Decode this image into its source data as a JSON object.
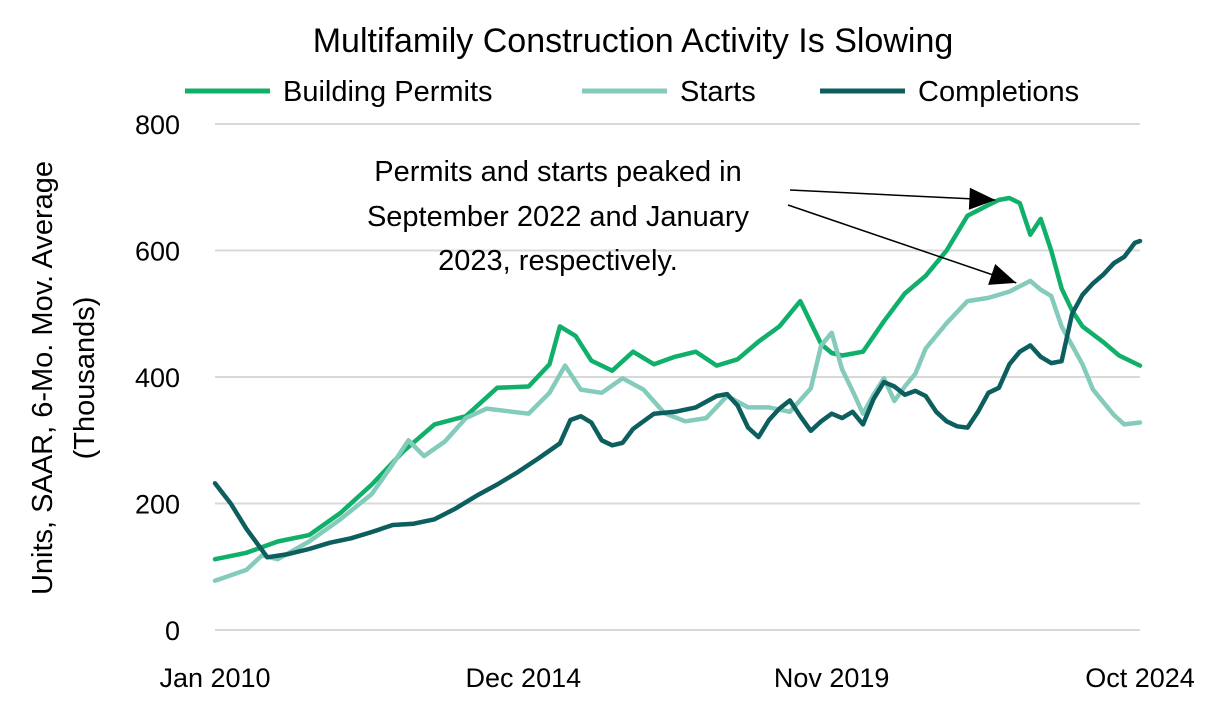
{
  "chart_data": {
    "type": "line",
    "title": "Multifamily Construction Activity Is Slowing",
    "xlabel": "",
    "ylabel_line1": "Units, SAAR, 6-Mo. Mov. Average",
    "ylabel_line2": "(Thousands)",
    "ylim": [
      0,
      800
    ],
    "yticks": [
      0,
      200,
      400,
      600,
      800
    ],
    "ytick_labels": [
      "0",
      "200",
      "400",
      "600",
      "800"
    ],
    "xlim": [
      0,
      177
    ],
    "xticks": [
      0,
      59,
      118,
      177
    ],
    "xtick_labels": [
      "Jan 2010",
      "Dec 2014",
      "Nov 2019",
      "Oct 2024"
    ],
    "grid": true,
    "legend_position": "top",
    "annotation": {
      "lines": [
        "Permits and starts peaked in",
        "September 2022 and January",
        "2023, respectively."
      ],
      "targets": [
        {
          "series": "Building Permits",
          "x": 152,
          "y": 683
        },
        {
          "series": "Starts",
          "x": 156,
          "y": 552
        }
      ]
    },
    "series": [
      {
        "name": "Building Permits",
        "color": "#10b06a",
        "points": [
          [
            0,
            112
          ],
          [
            6,
            122
          ],
          [
            12,
            140
          ],
          [
            18,
            150
          ],
          [
            24,
            185
          ],
          [
            30,
            230
          ],
          [
            36,
            282
          ],
          [
            42,
            325
          ],
          [
            48,
            338
          ],
          [
            54,
            383
          ],
          [
            60,
            385
          ],
          [
            64,
            420
          ],
          [
            66,
            480
          ],
          [
            69,
            465
          ],
          [
            72,
            426
          ],
          [
            76,
            410
          ],
          [
            80,
            440
          ],
          [
            84,
            420
          ],
          [
            88,
            432
          ],
          [
            92,
            440
          ],
          [
            96,
            418
          ],
          [
            100,
            428
          ],
          [
            104,
            456
          ],
          [
            108,
            480
          ],
          [
            112,
            520
          ],
          [
            116,
            452
          ],
          [
            118,
            438
          ],
          [
            120,
            434
          ],
          [
            124,
            440
          ],
          [
            128,
            488
          ],
          [
            132,
            532
          ],
          [
            136,
            560
          ],
          [
            140,
            600
          ],
          [
            144,
            655
          ],
          [
            148,
            672
          ],
          [
            150,
            680
          ],
          [
            152,
            683
          ],
          [
            154,
            675
          ],
          [
            156,
            625
          ],
          [
            158,
            650
          ],
          [
            160,
            600
          ],
          [
            162,
            540
          ],
          [
            164,
            505
          ],
          [
            166,
            480
          ],
          [
            170,
            455
          ],
          [
            173,
            434
          ],
          [
            177,
            418
          ]
        ]
      },
      {
        "name": "Starts",
        "color": "#84cbbb",
        "points": [
          [
            0,
            78
          ],
          [
            6,
            95
          ],
          [
            9,
            118
          ],
          [
            12,
            112
          ],
          [
            18,
            140
          ],
          [
            24,
            175
          ],
          [
            30,
            215
          ],
          [
            34,
            262
          ],
          [
            37,
            300
          ],
          [
            40,
            275
          ],
          [
            44,
            298
          ],
          [
            48,
            335
          ],
          [
            52,
            350
          ],
          [
            56,
            346
          ],
          [
            60,
            342
          ],
          [
            64,
            375
          ],
          [
            67,
            418
          ],
          [
            70,
            380
          ],
          [
            74,
            375
          ],
          [
            78,
            398
          ],
          [
            82,
            380
          ],
          [
            86,
            343
          ],
          [
            90,
            330
          ],
          [
            94,
            335
          ],
          [
            98,
            370
          ],
          [
            102,
            352
          ],
          [
            106,
            352
          ],
          [
            110,
            345
          ],
          [
            114,
            382
          ],
          [
            116,
            450
          ],
          [
            118,
            470
          ],
          [
            120,
            412
          ],
          [
            122,
            378
          ],
          [
            124,
            342
          ],
          [
            126,
            372
          ],
          [
            128,
            398
          ],
          [
            130,
            362
          ],
          [
            132,
            385
          ],
          [
            134,
            405
          ],
          [
            136,
            445
          ],
          [
            140,
            485
          ],
          [
            144,
            520
          ],
          [
            148,
            525
          ],
          [
            152,
            535
          ],
          [
            156,
            552
          ],
          [
            158,
            538
          ],
          [
            160,
            528
          ],
          [
            162,
            480
          ],
          [
            164,
            450
          ],
          [
            166,
            420
          ],
          [
            168,
            380
          ],
          [
            170,
            360
          ],
          [
            172,
            340
          ],
          [
            174,
            325
          ],
          [
            177,
            328
          ]
        ]
      },
      {
        "name": "Completions",
        "color": "#0d5e5e",
        "points": [
          [
            0,
            232
          ],
          [
            3,
            200
          ],
          [
            6,
            160
          ],
          [
            10,
            115
          ],
          [
            14,
            120
          ],
          [
            18,
            128
          ],
          [
            22,
            138
          ],
          [
            26,
            145
          ],
          [
            30,
            155
          ],
          [
            34,
            166
          ],
          [
            38,
            168
          ],
          [
            42,
            175
          ],
          [
            46,
            192
          ],
          [
            50,
            212
          ],
          [
            54,
            230
          ],
          [
            58,
            250
          ],
          [
            62,
            272
          ],
          [
            66,
            295
          ],
          [
            68,
            332
          ],
          [
            70,
            338
          ],
          [
            72,
            328
          ],
          [
            74,
            300
          ],
          [
            76,
            292
          ],
          [
            78,
            296
          ],
          [
            80,
            318
          ],
          [
            84,
            342
          ],
          [
            88,
            345
          ],
          [
            92,
            352
          ],
          [
            96,
            370
          ],
          [
            98,
            373
          ],
          [
            100,
            355
          ],
          [
            102,
            320
          ],
          [
            104,
            305
          ],
          [
            106,
            332
          ],
          [
            108,
            350
          ],
          [
            110,
            363
          ],
          [
            112,
            338
          ],
          [
            114,
            315
          ],
          [
            116,
            330
          ],
          [
            118,
            342
          ],
          [
            120,
            335
          ],
          [
            122,
            345
          ],
          [
            124,
            325
          ],
          [
            126,
            365
          ],
          [
            128,
            392
          ],
          [
            130,
            385
          ],
          [
            132,
            372
          ],
          [
            134,
            378
          ],
          [
            136,
            370
          ],
          [
            138,
            345
          ],
          [
            140,
            330
          ],
          [
            142,
            322
          ],
          [
            144,
            320
          ],
          [
            146,
            345
          ],
          [
            148,
            375
          ],
          [
            150,
            383
          ],
          [
            152,
            420
          ],
          [
            154,
            440
          ],
          [
            156,
            450
          ],
          [
            158,
            432
          ],
          [
            160,
            422
          ],
          [
            162,
            425
          ],
          [
            164,
            500
          ],
          [
            166,
            530
          ],
          [
            168,
            548
          ],
          [
            170,
            562
          ],
          [
            172,
            580
          ],
          [
            174,
            590
          ],
          [
            176,
            612
          ],
          [
            177,
            615
          ]
        ]
      }
    ]
  }
}
